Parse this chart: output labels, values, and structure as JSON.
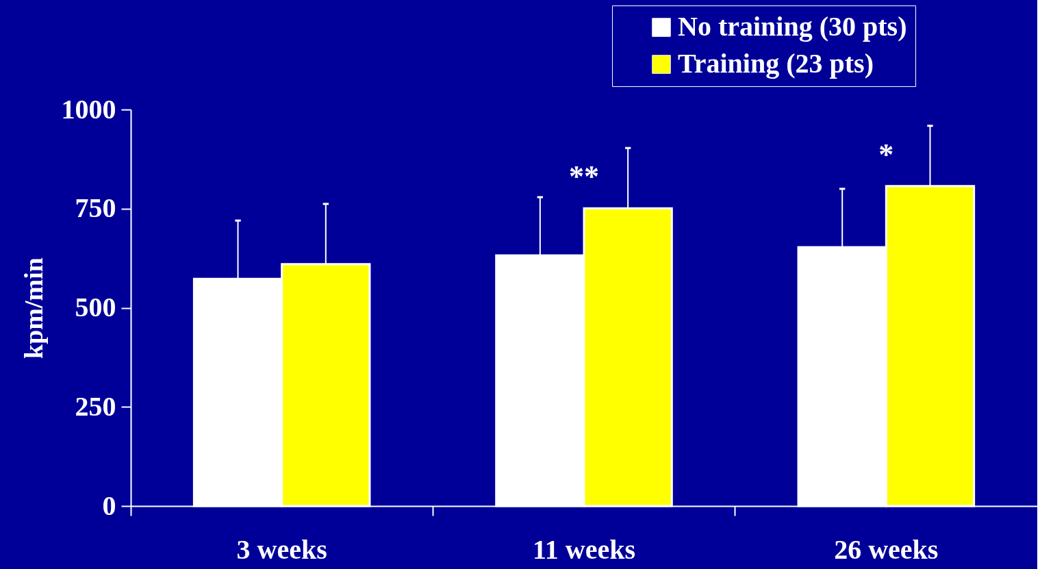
{
  "chart_data": {
    "type": "bar",
    "ylabel": "kpm/min",
    "categories": [
      "3 weeks",
      "11 weeks",
      "26 weeks"
    ],
    "series": [
      {
        "name": "No training (30 pts)",
        "color": "#ffffff",
        "values": [
          573,
          632,
          653
        ],
        "errors": [
          [
            573,
            720
          ],
          [
            632,
            779
          ],
          [
            653,
            800
          ]
        ]
      },
      {
        "name": "Training (23 pts)",
        "color": "#ffff00",
        "values": [
          610,
          751,
          807
        ],
        "errors": [
          [
            610,
            762
          ],
          [
            751,
            903
          ],
          [
            807,
            959
          ]
        ]
      }
    ],
    "ylim": [
      0,
      1000
    ],
    "yticks": [
      0,
      250,
      500,
      750,
      1000
    ],
    "grid": false,
    "legend": "top right",
    "annotations": [
      "**",
      "*"
    ]
  }
}
